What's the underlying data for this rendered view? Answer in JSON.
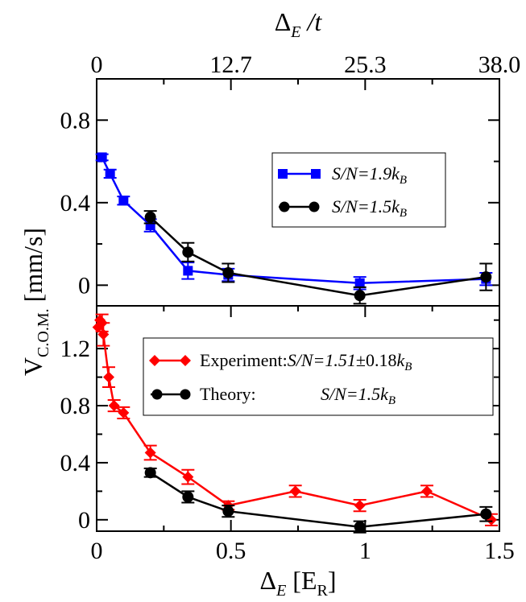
{
  "chart_data": [
    {
      "panel": "top",
      "type": "line",
      "xlim": [
        0,
        1.5
      ],
      "ylim": [
        -0.1,
        1.0
      ],
      "yticks": [
        {
          "value": 0,
          "label": "0"
        },
        {
          "value": 0.4,
          "label": "0.4"
        },
        {
          "value": 0.8,
          "label": "0.8"
        }
      ],
      "top_axis": {
        "title_main": "Δ",
        "title_sub": "E",
        "title_tail": " /t",
        "ticks": [
          {
            "value": 0,
            "label": "0"
          },
          {
            "value": 0.5,
            "label": "12.7"
          },
          {
            "value": 1.0,
            "label": "25.3"
          },
          {
            "value": 1.5,
            "label": "38.0"
          }
        ]
      },
      "series": [
        {
          "name_main": "S/N=1.9k",
          "name_sub": "B",
          "color": "#0000ff",
          "marker": "square",
          "x": [
            0.02,
            0.05,
            0.1,
            0.2,
            0.34,
            0.49,
            0.98,
            1.45
          ],
          "y": [
            0.62,
            0.54,
            0.41,
            0.29,
            0.07,
            0.05,
            0.01,
            0.03
          ],
          "err": [
            0.015,
            0.02,
            0.02,
            0.03,
            0.04,
            0.03,
            0.03,
            0.03
          ]
        },
        {
          "name_main": "S/N=1.5k",
          "name_sub": "B",
          "color": "#000000",
          "marker": "circle",
          "x": [
            0.2,
            0.34,
            0.49,
            0.98,
            1.45
          ],
          "y": [
            0.33,
            0.16,
            0.06,
            -0.05,
            0.04
          ],
          "err": [
            0.03,
            0.045,
            0.045,
            0.04,
            0.065
          ]
        }
      ]
    },
    {
      "panel": "bottom",
      "type": "line",
      "xlim": [
        0,
        1.5
      ],
      "ylim": [
        -0.08,
        1.5
      ],
      "yticks": [
        {
          "value": 0,
          "label": "0"
        },
        {
          "value": 0.4,
          "label": "0.4"
        },
        {
          "value": 0.8,
          "label": "0.8"
        },
        {
          "value": 1.2,
          "label": "1.2"
        }
      ],
      "xticks": [
        {
          "value": 0,
          "label": "0"
        },
        {
          "value": 0.5,
          "label": "0.5"
        },
        {
          "value": 1.0,
          "label": "1"
        },
        {
          "value": 1.5,
          "label": "1.5"
        }
      ],
      "xlabel": {
        "main": "Δ",
        "sub": "E",
        "tail_main": " [E",
        "tail_sub": "R",
        "close": "]"
      },
      "ylabel": {
        "main": "V",
        "sub": "C.O.M.",
        "tail": " [mm/s]"
      },
      "series": [
        {
          "name_prefix": "Experiment:",
          "name_italic": "S/N=1.51",
          "name_pm": "±0.18",
          "name_k": "k",
          "name_sub": "B",
          "color": "#ff0000",
          "marker": "diamond",
          "x": [
            0.005,
            0.012,
            0.02,
            0.025,
            0.045,
            0.065,
            0.1,
            0.2,
            0.34,
            0.49,
            0.74,
            0.98,
            1.23,
            1.47
          ],
          "y": [
            1.35,
            1.4,
            1.38,
            1.3,
            1.0,
            0.8,
            0.75,
            0.47,
            0.3,
            0.1,
            0.2,
            0.1,
            0.2,
            0.0
          ],
          "err": [
            0.0,
            0.0,
            0.06,
            0.08,
            0.07,
            0.04,
            0.04,
            0.05,
            0.05,
            0.03,
            0.04,
            0.04,
            0.04,
            0.04
          ]
        },
        {
          "name_prefix": "Theory:",
          "name_italic": "S/N=1.5k",
          "name_sub": "B",
          "color": "#000000",
          "marker": "circle",
          "x": [
            0.2,
            0.34,
            0.49,
            0.98,
            1.45
          ],
          "y": [
            0.33,
            0.16,
            0.06,
            -0.05,
            0.04
          ],
          "err": [
            0.03,
            0.04,
            0.04,
            0.04,
            0.05
          ]
        }
      ]
    }
  ]
}
